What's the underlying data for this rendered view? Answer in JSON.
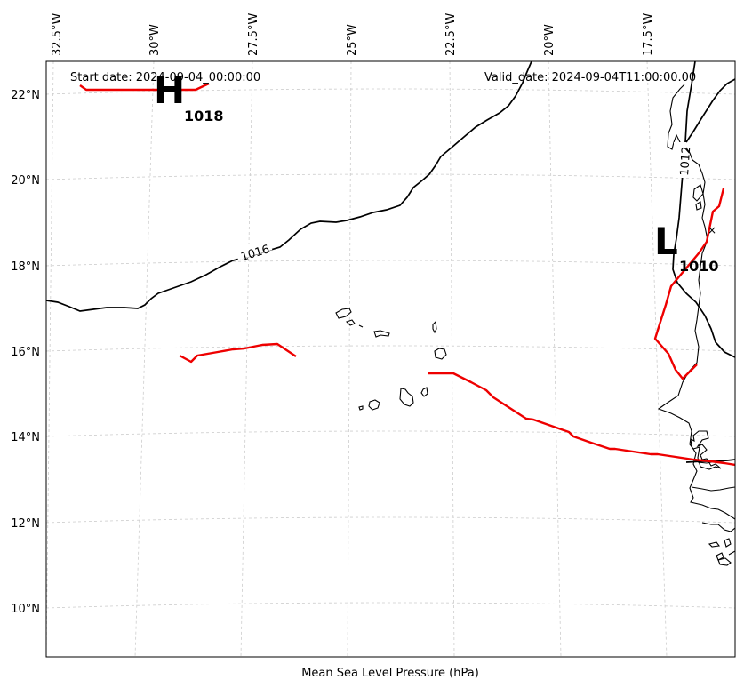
{
  "map": {
    "header": {
      "start_date": "Start date: 2024-09-04_00:00:00",
      "valid_date": "Valid_date: 2024-09-04T11:00:00.00"
    },
    "footer": {
      "label": "Mean Sea Level Pressure (hPa)"
    },
    "longitude_ticks": [
      "32.5°W",
      "30°W",
      "27.5°W",
      "25°W",
      "22.5°W",
      "20°W",
      "17.5°W"
    ],
    "latitude_ticks": [
      "22°N",
      "20°N",
      "18°N",
      "16°N",
      "14°N",
      "12°N",
      "10°N"
    ],
    "pressure_centers": [
      {
        "letter": "H",
        "value": "1018"
      },
      {
        "letter": "L",
        "value": "1010"
      }
    ],
    "isobar_labels": [
      "1016",
      "1012"
    ],
    "colors": {
      "isobar": "#000000",
      "front": "#ee0000",
      "grid": "#cccccc",
      "coastline": "#000000"
    }
  }
}
